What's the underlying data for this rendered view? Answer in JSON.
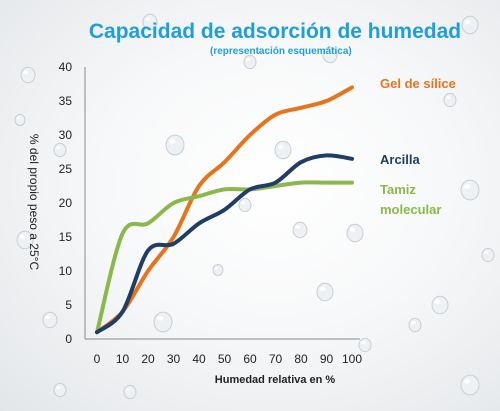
{
  "chart_data": {
    "type": "line",
    "title": "Capacidad de adsorción de humedad",
    "subtitle": "(representación esquemática)",
    "xlabel": "Humedad relativa en %",
    "ylabel": "% del propio peso a 25°C",
    "x": [
      0,
      10,
      20,
      30,
      40,
      50,
      60,
      70,
      80,
      90,
      100
    ],
    "xlim": [
      0,
      100
    ],
    "ylim": [
      0,
      40
    ],
    "xticks": [
      0,
      10,
      20,
      30,
      40,
      50,
      60,
      70,
      80,
      90,
      100
    ],
    "yticks": [
      0,
      5,
      10,
      15,
      20,
      25,
      30,
      35,
      40
    ],
    "grid": false,
    "legend": "inline-right",
    "series": [
      {
        "name": "Gel de sílice",
        "color": "#e8731a",
        "values": [
          1,
          4,
          10,
          15,
          22.5,
          26,
          30,
          33,
          34,
          35,
          37
        ]
      },
      {
        "name": "Arcilla",
        "color": "#1f3d66",
        "values": [
          1,
          4,
          13,
          14,
          17,
          19,
          22,
          23,
          26,
          27,
          26.5
        ]
      },
      {
        "name": "Tamiz molecular",
        "color": "#8ab84a",
        "values": [
          1,
          15.5,
          17,
          20,
          21,
          22,
          22,
          22.5,
          23,
          23,
          23
        ]
      }
    ]
  }
}
